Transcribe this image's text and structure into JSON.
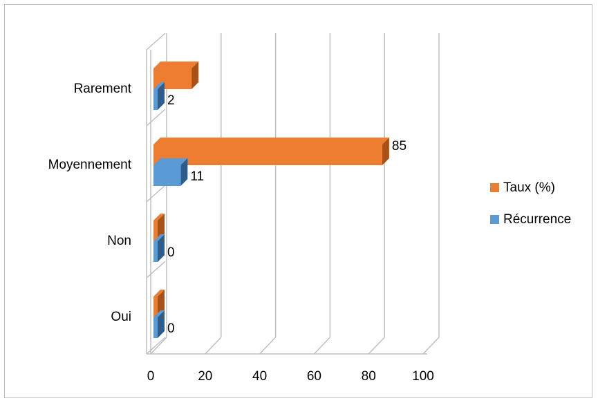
{
  "chart_data": {
    "type": "bar",
    "orientation": "horizontal",
    "three_d": true,
    "categories": [
      "Oui",
      "Non",
      "Moyennement",
      "Rarement"
    ],
    "series": [
      {
        "name": "Récurrence",
        "values": [
          0,
          0,
          11,
          2
        ],
        "color": "#5b9bd5",
        "dark": "#2e5d8a",
        "labels": [
          "0",
          "0",
          "11",
          "2"
        ]
      },
      {
        "name": "Taux (%)",
        "values": [
          0,
          0,
          85,
          15
        ],
        "color": "#ed7d31",
        "dark": "#a8521a",
        "labels": [
          "",
          "",
          "85",
          ""
        ]
      }
    ],
    "xlim": [
      0,
      100
    ],
    "xticks": [
      "0",
      "20",
      "40",
      "60",
      "80",
      "100"
    ],
    "grid": true,
    "legend_position": "right"
  }
}
